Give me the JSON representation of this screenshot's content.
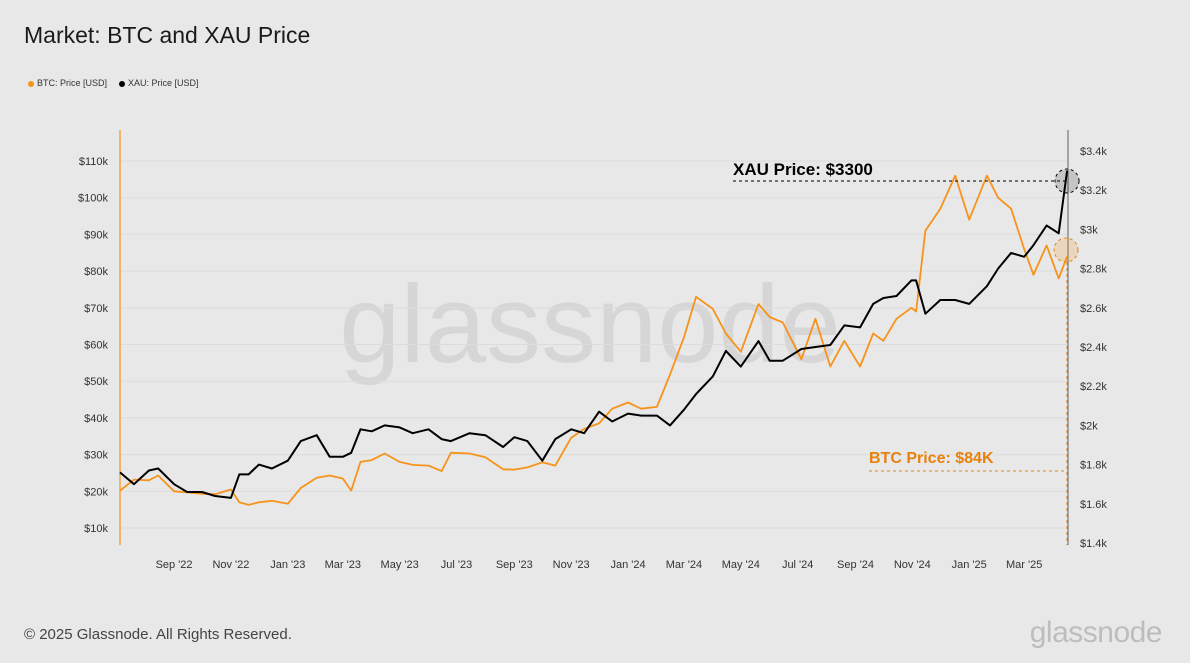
{
  "title": "Market: BTC and XAU Price",
  "footer": "© 2025 Glassnode. All Rights Reserved.",
  "brand": "glassnode",
  "watermark": "glassnode",
  "chart_data": {
    "type": "line",
    "title": "Market: BTC and XAU Price",
    "legend_position": "top-left",
    "grid": true,
    "x_ticks": [
      "Sep '22",
      "Nov '22",
      "Jan '23",
      "Mar '23",
      "May '23",
      "Jul '23",
      "Sep '23",
      "Nov '23",
      "Jan '24",
      "Mar '24",
      "May '24",
      "Jul '24",
      "Sep '24",
      "Nov '24",
      "Jan '25",
      "Mar '25"
    ],
    "x_tick_dates": [
      "2022-09-01",
      "2022-11-01",
      "2023-01-01",
      "2023-03-01",
      "2023-05-01",
      "2023-07-01",
      "2023-09-01",
      "2023-11-01",
      "2024-01-01",
      "2024-03-01",
      "2024-05-01",
      "2024-07-01",
      "2024-09-01",
      "2024-11-01",
      "2025-01-01",
      "2025-03-01"
    ],
    "x_range": [
      "2022-07-05",
      "2025-04-17"
    ],
    "y_left": {
      "ticks": [
        "$10k",
        "$20k",
        "$30k",
        "$40k",
        "$50k",
        "$60k",
        "$70k",
        "$80k",
        "$90k",
        "$100k",
        "$110k"
      ],
      "range": [
        10,
        110
      ],
      "unit": "k USD"
    },
    "y_right": {
      "ticks": [
        "$1.4k",
        "$1.6k",
        "$1.8k",
        "$2k",
        "$2.2k",
        "$2.4k",
        "$2.6k",
        "$2.8k",
        "$3k",
        "$3.2k",
        "$3.4k"
      ],
      "range": [
        1.4,
        3.4
      ],
      "unit": "k USD"
    },
    "dates": [
      "2022-07-05",
      "2022-07-20",
      "2022-08-05",
      "2022-08-15",
      "2022-09-01",
      "2022-09-15",
      "2022-10-01",
      "2022-10-15",
      "2022-11-01",
      "2022-11-10",
      "2022-11-20",
      "2022-12-01",
      "2022-12-15",
      "2023-01-01",
      "2023-01-15",
      "2023-02-01",
      "2023-02-15",
      "2023-03-01",
      "2023-03-10",
      "2023-03-20",
      "2023-04-01",
      "2023-04-15",
      "2023-05-01",
      "2023-05-15",
      "2023-06-01",
      "2023-06-15",
      "2023-06-25",
      "2023-07-15",
      "2023-08-01",
      "2023-08-20",
      "2023-09-01",
      "2023-09-15",
      "2023-10-01",
      "2023-10-15",
      "2023-11-01",
      "2023-11-15",
      "2023-12-01",
      "2023-12-15",
      "2024-01-01",
      "2024-01-15",
      "2024-02-01",
      "2024-02-15",
      "2024-03-01",
      "2024-03-14",
      "2024-04-01",
      "2024-04-15",
      "2024-05-01",
      "2024-05-20",
      "2024-06-01",
      "2024-06-15",
      "2024-07-05",
      "2024-07-20",
      "2024-08-05",
      "2024-08-20",
      "2024-09-06",
      "2024-09-20",
      "2024-10-01",
      "2024-10-15",
      "2024-10-31",
      "2024-11-05",
      "2024-11-15",
      "2024-12-01",
      "2024-12-17",
      "2025-01-01",
      "2025-01-20",
      "2025-02-01",
      "2025-02-15",
      "2025-03-01",
      "2025-03-11",
      "2025-03-25",
      "2025-04-07",
      "2025-04-16"
    ],
    "series": [
      {
        "name": "BTC: Price [USD]",
        "axis": "left",
        "color": "#f7931a",
        "values": [
          20.2,
          23.2,
          23.0,
          24.3,
          20.0,
          19.7,
          19.3,
          19.2,
          20.5,
          17.0,
          16.3,
          17.0,
          17.4,
          16.6,
          20.9,
          23.7,
          24.3,
          23.5,
          20.2,
          28.0,
          28.5,
          30.3,
          28.0,
          27.2,
          27.0,
          25.5,
          30.5,
          30.3,
          29.3,
          26.0,
          25.9,
          26.5,
          27.9,
          27.0,
          34.6,
          37.0,
          38.5,
          42.5,
          44.2,
          42.5,
          43.0,
          51.8,
          62.0,
          73.0,
          69.7,
          63.0,
          58.0,
          71.0,
          67.5,
          66.0,
          56.0,
          67.0,
          54.0,
          61.0,
          54.0,
          63.0,
          61.0,
          67.0,
          70.0,
          69.0,
          91.0,
          97.0,
          106.0,
          94.0,
          106.0,
          100.0,
          97.0,
          86.0,
          79.0,
          87.0,
          78.0,
          84.0
        ]
      },
      {
        "name": "XAU: Price [USD]",
        "axis": "right",
        "color": "#000000",
        "values": [
          1.76,
          1.7,
          1.77,
          1.78,
          1.7,
          1.66,
          1.66,
          1.64,
          1.63,
          1.75,
          1.75,
          1.8,
          1.78,
          1.82,
          1.92,
          1.95,
          1.84,
          1.84,
          1.86,
          1.98,
          1.97,
          2.0,
          1.99,
          1.96,
          1.98,
          1.93,
          1.92,
          1.96,
          1.95,
          1.89,
          1.94,
          1.92,
          1.82,
          1.93,
          1.98,
          1.96,
          2.07,
          2.02,
          2.06,
          2.05,
          2.05,
          2.0,
          2.08,
          2.16,
          2.25,
          2.38,
          2.3,
          2.43,
          2.33,
          2.33,
          2.39,
          2.4,
          2.41,
          2.51,
          2.5,
          2.62,
          2.65,
          2.66,
          2.74,
          2.74,
          2.57,
          2.64,
          2.64,
          2.62,
          2.71,
          2.8,
          2.88,
          2.86,
          2.92,
          3.02,
          2.98,
          3.3
        ]
      }
    ],
    "annotations": [
      {
        "text": "XAU Price: $3300",
        "color": "#000000"
      },
      {
        "text": "BTC Price: $84K",
        "color": "#e8820c"
      }
    ]
  }
}
